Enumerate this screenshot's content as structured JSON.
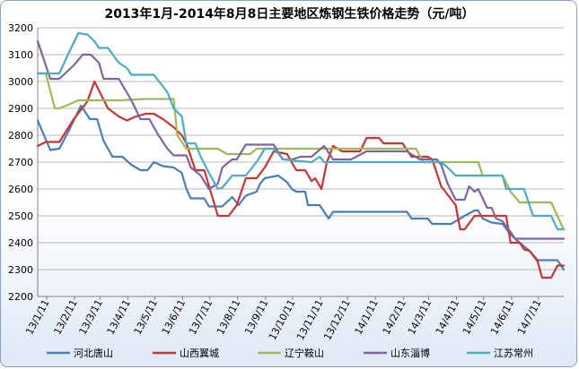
{
  "chart_data": {
    "type": "line",
    "title": "2013年1月-2014年8月8日主要地区炼钢生铁价格走势（元/吨）",
    "xlabel": "",
    "ylabel": "",
    "ylim": [
      2200,
      3200
    ],
    "yticks": [
      2200,
      2300,
      2400,
      2500,
      2600,
      2700,
      2800,
      2900,
      3000,
      3100,
      3200
    ],
    "grid": true,
    "legend": "bottom",
    "x_range": [
      "2013-01-01",
      "2014-08-08"
    ],
    "xtick_labels": [
      "13/1/11",
      "13/2/11",
      "13/3/11",
      "13/4/11",
      "13/5/11",
      "13/6/11",
      "13/7/11",
      "13/8/11",
      "13/9/11",
      "13/10/11",
      "13/11/11",
      "13/12/11",
      "14/1/11",
      "14/2/11",
      "14/3/11",
      "14/4/11",
      "14/5/11",
      "14/6/11",
      "14/7/11"
    ],
    "series": [
      {
        "name": "河北唐山",
        "color": "#4a7ebb",
        "points": [
          [
            "2013-01-01",
            2855
          ],
          [
            "2013-01-15",
            2745
          ],
          [
            "2013-01-25",
            2750
          ],
          [
            "2013-02-05",
            2820
          ],
          [
            "2013-02-18",
            2910
          ],
          [
            "2013-02-28",
            2860
          ],
          [
            "2013-03-08",
            2860
          ],
          [
            "2013-03-15",
            2780
          ],
          [
            "2013-03-25",
            2720
          ],
          [
            "2013-04-05",
            2720
          ],
          [
            "2013-04-15",
            2690
          ],
          [
            "2013-04-25",
            2670
          ],
          [
            "2013-05-03",
            2670
          ],
          [
            "2013-05-10",
            2700
          ],
          [
            "2013-05-20",
            2685
          ],
          [
            "2013-06-01",
            2680
          ],
          [
            "2013-06-10",
            2660
          ],
          [
            "2013-06-15",
            2600
          ],
          [
            "2013-06-20",
            2565
          ],
          [
            "2013-07-05",
            2565
          ],
          [
            "2013-07-10",
            2535
          ],
          [
            "2013-07-25",
            2535
          ],
          [
            "2013-08-05",
            2570
          ],
          [
            "2013-08-12",
            2540
          ],
          [
            "2013-08-20",
            2575
          ],
          [
            "2013-09-01",
            2590
          ],
          [
            "2013-09-05",
            2620
          ],
          [
            "2013-09-10",
            2640
          ],
          [
            "2013-09-25",
            2650
          ],
          [
            "2013-10-05",
            2625
          ],
          [
            "2013-10-10",
            2600
          ],
          [
            "2013-10-15",
            2590
          ],
          [
            "2013-10-25",
            2590
          ],
          [
            "2013-10-28",
            2540
          ],
          [
            "2013-11-10",
            2540
          ],
          [
            "2013-11-20",
            2490
          ],
          [
            "2013-11-25",
            2515
          ],
          [
            "2014-02-15",
            2515
          ],
          [
            "2014-02-20",
            2490
          ],
          [
            "2014-03-10",
            2490
          ],
          [
            "2014-03-15",
            2470
          ],
          [
            "2014-04-05",
            2470
          ],
          [
            "2014-04-20",
            2500
          ],
          [
            "2014-05-01",
            2520
          ],
          [
            "2014-05-05",
            2520
          ],
          [
            "2014-05-10",
            2490
          ],
          [
            "2014-05-20",
            2475
          ],
          [
            "2014-06-01",
            2470
          ],
          [
            "2014-06-10",
            2430
          ],
          [
            "2014-06-20",
            2400
          ],
          [
            "2014-07-01",
            2370
          ],
          [
            "2014-07-10",
            2335
          ],
          [
            "2014-08-01",
            2335
          ],
          [
            "2014-08-08",
            2300
          ]
        ]
      },
      {
        "name": "山西翼城",
        "color": "#cc3333",
        "points": [
          [
            "2013-01-01",
            2760
          ],
          [
            "2013-01-10",
            2775
          ],
          [
            "2013-01-25",
            2775
          ],
          [
            "2013-02-10",
            2860
          ],
          [
            "2013-02-25",
            2925
          ],
          [
            "2013-03-05",
            3000
          ],
          [
            "2013-03-20",
            2900
          ],
          [
            "2013-04-01",
            2870
          ],
          [
            "2013-04-10",
            2855
          ],
          [
            "2013-04-20",
            2870
          ],
          [
            "2013-05-01",
            2880
          ],
          [
            "2013-05-10",
            2880
          ],
          [
            "2013-05-20",
            2860
          ],
          [
            "2013-06-01",
            2830
          ],
          [
            "2013-06-10",
            2800
          ],
          [
            "2013-06-15",
            2770
          ],
          [
            "2013-06-25",
            2670
          ],
          [
            "2013-07-05",
            2670
          ],
          [
            "2013-07-20",
            2500
          ],
          [
            "2013-08-01",
            2500
          ],
          [
            "2013-08-10",
            2540
          ],
          [
            "2013-08-20",
            2640
          ],
          [
            "2013-09-01",
            2640
          ],
          [
            "2013-09-10",
            2680
          ],
          [
            "2013-09-20",
            2740
          ],
          [
            "2013-10-05",
            2730
          ],
          [
            "2013-10-15",
            2670
          ],
          [
            "2013-10-25",
            2670
          ],
          [
            "2013-11-01",
            2630
          ],
          [
            "2013-11-05",
            2640
          ],
          [
            "2013-11-12",
            2600
          ],
          [
            "2013-11-18",
            2700
          ],
          [
            "2013-11-25",
            2760
          ],
          [
            "2013-12-05",
            2740
          ],
          [
            "2013-12-25",
            2740
          ],
          [
            "2014-01-01",
            2790
          ],
          [
            "2014-01-15",
            2790
          ],
          [
            "2014-01-20",
            2770
          ],
          [
            "2014-02-10",
            2770
          ],
          [
            "2014-02-20",
            2720
          ],
          [
            "2014-03-10",
            2720
          ],
          [
            "2014-03-15",
            2710
          ],
          [
            "2014-03-25",
            2610
          ],
          [
            "2014-04-10",
            2540
          ],
          [
            "2014-04-15",
            2450
          ],
          [
            "2014-04-20",
            2450
          ],
          [
            "2014-05-01",
            2500
          ],
          [
            "2014-05-20",
            2500
          ],
          [
            "2014-06-05",
            2500
          ],
          [
            "2014-06-10",
            2400
          ],
          [
            "2014-06-20",
            2400
          ],
          [
            "2014-06-25",
            2375
          ],
          [
            "2014-07-01",
            2370
          ],
          [
            "2014-07-10",
            2330
          ],
          [
            "2014-07-15",
            2270
          ],
          [
            "2014-07-25",
            2270
          ],
          [
            "2014-08-01",
            2315
          ],
          [
            "2014-08-08",
            2315
          ]
        ]
      },
      {
        "name": "辽宁鞍山",
        "color": "#9bbb59",
        "points": [
          [
            "2013-01-01",
            3030
          ],
          [
            "2013-01-10",
            3030
          ],
          [
            "2013-01-20",
            2900
          ],
          [
            "2013-01-25",
            2900
          ],
          [
            "2013-02-05",
            2915
          ],
          [
            "2013-02-15",
            2930
          ],
          [
            "2013-03-15",
            2930
          ],
          [
            "2013-04-01",
            2930
          ],
          [
            "2013-05-01",
            2935
          ],
          [
            "2013-05-25",
            2935
          ],
          [
            "2013-06-01",
            2935
          ],
          [
            "2013-06-05",
            2800
          ],
          [
            "2013-06-15",
            2750
          ],
          [
            "2013-06-25",
            2750
          ],
          [
            "2013-07-10",
            2750
          ],
          [
            "2013-07-20",
            2750
          ],
          [
            "2013-07-30",
            2730
          ],
          [
            "2013-08-10",
            2730
          ],
          [
            "2013-08-25",
            2730
          ],
          [
            "2013-09-01",
            2750
          ],
          [
            "2013-10-01",
            2750
          ],
          [
            "2013-11-01",
            2750
          ],
          [
            "2013-12-01",
            2750
          ],
          [
            "2014-01-01",
            2750
          ],
          [
            "2014-02-01",
            2750
          ],
          [
            "2014-02-25",
            2750
          ],
          [
            "2014-03-05",
            2700
          ],
          [
            "2014-04-01",
            2700
          ],
          [
            "2014-04-15",
            2700
          ],
          [
            "2014-05-05",
            2700
          ],
          [
            "2014-05-10",
            2650
          ],
          [
            "2014-06-01",
            2650
          ],
          [
            "2014-06-10",
            2590
          ],
          [
            "2014-06-20",
            2550
          ],
          [
            "2014-07-05",
            2550
          ],
          [
            "2014-07-25",
            2550
          ],
          [
            "2014-08-05",
            2470
          ],
          [
            "2014-08-08",
            2450
          ]
        ]
      },
      {
        "name": "山东淄博",
        "color": "#8064a2",
        "points": [
          [
            "2013-01-01",
            3150
          ],
          [
            "2013-01-05",
            3110
          ],
          [
            "2013-01-15",
            3010
          ],
          [
            "2013-01-25",
            3010
          ],
          [
            "2013-02-10",
            3060
          ],
          [
            "2013-02-20",
            3100
          ],
          [
            "2013-03-01",
            3100
          ],
          [
            "2013-03-10",
            3070
          ],
          [
            "2013-03-15",
            3010
          ],
          [
            "2013-03-25",
            3010
          ],
          [
            "2013-04-01",
            3010
          ],
          [
            "2013-04-15",
            2930
          ],
          [
            "2013-04-25",
            2860
          ],
          [
            "2013-05-05",
            2860
          ],
          [
            "2013-05-15",
            2800
          ],
          [
            "2013-05-25",
            2750
          ],
          [
            "2013-06-01",
            2725
          ],
          [
            "2013-06-15",
            2725
          ],
          [
            "2013-06-20",
            2680
          ],
          [
            "2013-07-01",
            2650
          ],
          [
            "2013-07-10",
            2600
          ],
          [
            "2013-07-20",
            2620
          ],
          [
            "2013-07-25",
            2680
          ],
          [
            "2013-08-05",
            2710
          ],
          [
            "2013-08-10",
            2710
          ],
          [
            "2013-08-20",
            2765
          ],
          [
            "2013-09-01",
            2765
          ],
          [
            "2013-09-15",
            2765
          ],
          [
            "2013-09-20",
            2765
          ],
          [
            "2013-09-30",
            2710
          ],
          [
            "2013-10-10",
            2710
          ],
          [
            "2013-10-20",
            2720
          ],
          [
            "2013-11-01",
            2720
          ],
          [
            "2013-11-15",
            2760
          ],
          [
            "2013-11-25",
            2710
          ],
          [
            "2013-12-15",
            2710
          ],
          [
            "2014-01-01",
            2740
          ],
          [
            "2014-01-15",
            2740
          ],
          [
            "2014-02-15",
            2740
          ],
          [
            "2014-03-01",
            2710
          ],
          [
            "2014-03-20",
            2710
          ],
          [
            "2014-03-25",
            2690
          ],
          [
            "2014-04-01",
            2620
          ],
          [
            "2014-04-10",
            2560
          ],
          [
            "2014-04-20",
            2560
          ],
          [
            "2014-04-25",
            2610
          ],
          [
            "2014-05-01",
            2590
          ],
          [
            "2014-05-05",
            2600
          ],
          [
            "2014-05-15",
            2530
          ],
          [
            "2014-05-20",
            2530
          ],
          [
            "2014-05-25",
            2490
          ],
          [
            "2014-06-01",
            2480
          ],
          [
            "2014-06-10",
            2440
          ],
          [
            "2014-06-15",
            2415
          ],
          [
            "2014-07-01",
            2415
          ],
          [
            "2014-08-08",
            2415
          ]
        ]
      },
      {
        "name": "江苏常州",
        "color": "#4bacc6",
        "points": [
          [
            "2013-01-01",
            3030
          ],
          [
            "2013-01-15",
            3030
          ],
          [
            "2013-01-25",
            3030
          ],
          [
            "2013-02-05",
            3110
          ],
          [
            "2013-02-15",
            3180
          ],
          [
            "2013-02-25",
            3175
          ],
          [
            "2013-03-05",
            3150
          ],
          [
            "2013-03-10",
            3125
          ],
          [
            "2013-03-20",
            3125
          ],
          [
            "2013-04-01",
            3070
          ],
          [
            "2013-04-10",
            3050
          ],
          [
            "2013-04-15",
            3025
          ],
          [
            "2013-05-01",
            3025
          ],
          [
            "2013-05-10",
            3025
          ],
          [
            "2013-05-25",
            2960
          ],
          [
            "2013-06-01",
            2900
          ],
          [
            "2013-06-10",
            2870
          ],
          [
            "2013-06-15",
            2770
          ],
          [
            "2013-06-25",
            2770
          ],
          [
            "2013-07-01",
            2720
          ],
          [
            "2013-07-10",
            2660
          ],
          [
            "2013-07-20",
            2600
          ],
          [
            "2013-07-25",
            2605
          ],
          [
            "2013-08-05",
            2650
          ],
          [
            "2013-08-20",
            2650
          ],
          [
            "2013-09-01",
            2700
          ],
          [
            "2013-09-10",
            2750
          ],
          [
            "2013-09-20",
            2750
          ],
          [
            "2013-10-01",
            2710
          ],
          [
            "2013-10-15",
            2705
          ],
          [
            "2013-11-01",
            2700
          ],
          [
            "2013-11-10",
            2720
          ],
          [
            "2013-11-15",
            2700
          ],
          [
            "2013-12-01",
            2700
          ],
          [
            "2014-01-01",
            2700
          ],
          [
            "2014-02-01",
            2700
          ],
          [
            "2014-03-15",
            2700
          ],
          [
            "2014-03-25",
            2700
          ],
          [
            "2014-04-01",
            2680
          ],
          [
            "2014-04-10",
            2650
          ],
          [
            "2014-05-01",
            2650
          ],
          [
            "2014-05-15",
            2650
          ],
          [
            "2014-06-01",
            2650
          ],
          [
            "2014-06-05",
            2600
          ],
          [
            "2014-06-25",
            2600
          ],
          [
            "2014-07-05",
            2500
          ],
          [
            "2014-07-25",
            2500
          ],
          [
            "2014-08-01",
            2450
          ],
          [
            "2014-08-08",
            2450
          ]
        ]
      }
    ]
  }
}
